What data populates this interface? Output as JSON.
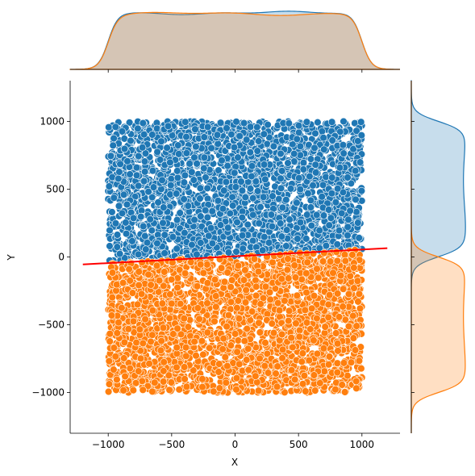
{
  "chart_data": {
    "type": "scatter",
    "title": "",
    "xlabel": "X",
    "ylabel": "Y",
    "xlim": [
      -1300,
      1300
    ],
    "ylim": [
      -1300,
      1300
    ],
    "x_ticks": [
      -1000,
      -500,
      0,
      500,
      1000
    ],
    "y_ticks": [
      -1000,
      -500,
      0,
      500,
      1000
    ],
    "x_tick_labels": [
      "−1000",
      "−500",
      "0",
      "500",
      "1000"
    ],
    "y_tick_labels": [
      "−1000",
      "−500",
      "0",
      "500",
      "1000"
    ],
    "grid": false,
    "legend": "none",
    "series": [
      {
        "color": "#1f77b4",
        "x_range": [
          -1000,
          1000
        ],
        "y_range": [
          -50,
          1000
        ],
        "distribution": "uniform, points above the separating line"
      },
      {
        "color": "#ff7f0e",
        "x_range": [
          -1000,
          1000
        ],
        "y_range": [
          -1000,
          60
        ],
        "distribution": "uniform, points below the separating line"
      }
    ],
    "regression_line": {
      "color": "#ff0000",
      "x": [
        -1200,
        1200
      ],
      "y": [
        -55,
        65
      ]
    },
    "marginal_x": {
      "type": "kde",
      "overlap_color": "#c4c2bd",
      "series_colors": [
        "#1f77b4",
        "#ff7f0e"
      ]
    },
    "marginal_y": {
      "type": "kde",
      "series_colors": [
        "#1f77b4",
        "#ff7f0e"
      ]
    }
  }
}
